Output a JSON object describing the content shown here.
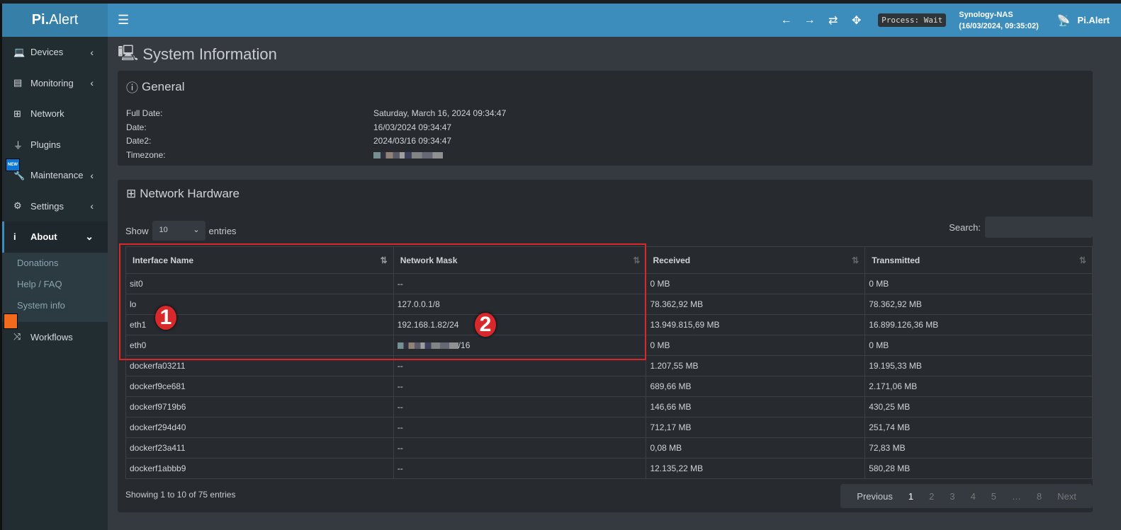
{
  "app": {
    "brand_prefix": "Pi.",
    "brand_suffix": "Alert",
    "process": "Process: Wait",
    "host": "Synology-NAS",
    "host_time": "(16/03/2024, 09:35:02)",
    "brand_right": "Pi.Alert"
  },
  "sidebar": {
    "items": [
      {
        "label": "Devices",
        "icon": "laptop-icon"
      },
      {
        "label": "Monitoring",
        "icon": "chart-icon"
      },
      {
        "label": "Network",
        "icon": "network-icon"
      },
      {
        "label": "Plugins",
        "icon": "plug-icon"
      },
      {
        "label": "Maintenance",
        "icon": "wrench-icon"
      },
      {
        "label": "Settings",
        "icon": "gear-icon"
      },
      {
        "label": "About",
        "icon": "info-icon"
      },
      {
        "label": "Workflows",
        "icon": "shuffle-icon"
      }
    ],
    "about_sub": [
      "Donations",
      "Help / FAQ",
      "System info"
    ],
    "new_badge": "NEW"
  },
  "page": {
    "title": "System Information"
  },
  "general": {
    "title": "General",
    "rows": [
      {
        "label": "Full Date:",
        "value": "Saturday, March 16, 2024 09:34:47"
      },
      {
        "label": "Date:",
        "value": "16/03/2024 09:34:47"
      },
      {
        "label": "Date2:",
        "value": "2024/03/16 09:34:47"
      },
      {
        "label": "Timezone:",
        "value": ""
      }
    ]
  },
  "network": {
    "title": "Network Hardware",
    "show": "Show",
    "entries_value": "10",
    "entries": "entries",
    "search": "Search:",
    "headers": [
      "Interface Name",
      "Network Mask",
      "Received",
      "Transmitted"
    ],
    "rows": [
      [
        "sit0",
        "--",
        "0 MB",
        "0 MB"
      ],
      [
        "lo",
        "127.0.0.1/8",
        "78.362,92 MB",
        "78.362,92 MB"
      ],
      [
        "eth1",
        "192.168.1.82/24",
        "13.949.815,69 MB",
        "16.899.126,36 MB"
      ],
      [
        "eth0",
        "/16",
        "0 MB",
        "0 MB"
      ],
      [
        "dockerfa03211",
        "--",
        "1.207,55 MB",
        "19.195,33 MB"
      ],
      [
        "dockerf9ce681",
        "--",
        "689,66 MB",
        "2.171,06 MB"
      ],
      [
        "dockerf9719b6",
        "--",
        "146,66 MB",
        "430,25 MB"
      ],
      [
        "dockerf294d40",
        "--",
        "712,17 MB",
        "251,74 MB"
      ],
      [
        "dockerf23a411",
        "--",
        "0,08 MB",
        "72,83 MB"
      ],
      [
        "dockerf1abbb9",
        "--",
        "12.135,22 MB",
        "580,28 MB"
      ]
    ],
    "info": "Showing 1 to 10 of 75 entries",
    "pager": [
      "Previous",
      "1",
      "2",
      "3",
      "4",
      "5",
      "…",
      "8",
      "Next"
    ]
  },
  "annotations": [
    "1",
    "2"
  ],
  "colors": {
    "navbar": "#3c8dbc",
    "sidebar": "#222d32",
    "highlight": "#d9282b"
  }
}
